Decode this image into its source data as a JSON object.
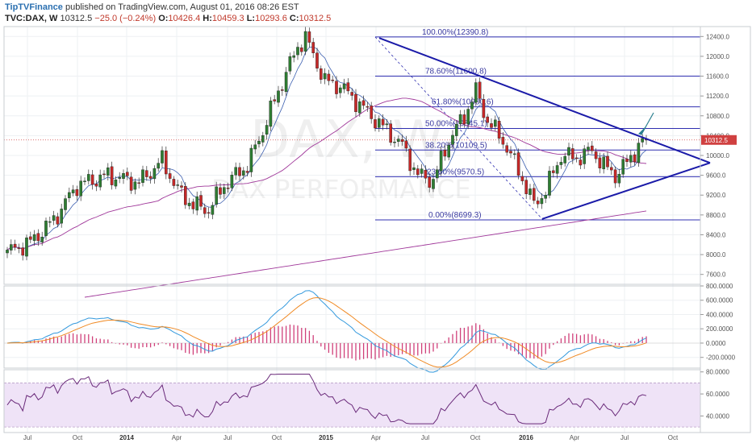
{
  "header": {
    "brand": "TipTVFinance",
    "published": "published on TradingView.com, August 01, 2016 08:26 EST",
    "symbol": "TVC:DAX, W",
    "last": "10312.5",
    "change": "−25.0 (−0.24%)",
    "o_label": "O:",
    "o_value": "10426.4",
    "h_label": "H:",
    "h_value": "10459.3",
    "l_label": "L:",
    "l_value": "10293.6",
    "c_label": "C:",
    "c_value": "10312.5"
  },
  "watermark": {
    "line1": "DAX, W",
    "line2": "DAX PERFORMANCE"
  },
  "colors": {
    "up": "#2e7d32",
    "down": "#c62828",
    "fib": "#2f2fb0",
    "trend": "#1a1aa8",
    "ma": "#a0389a",
    "macd": "#3399dd",
    "signal": "#f08a24",
    "hist": "#d0407a",
    "rsi": "#6a2a7a",
    "rsi_band": "#efe3f7"
  },
  "chart_data": [
    {
      "type": "candlestick",
      "panel": "price",
      "ylim": [
        7400,
        12600
      ],
      "y_ticks": [
        "12400.0",
        "12000.0",
        "11600.0",
        "11200.0",
        "10800.0",
        "10400.0",
        "10000.0",
        "9600.0",
        "9200.0",
        "8800.0",
        "8400.0",
        "8000.0",
        "7600.0"
      ],
      "y_tick_values": [
        12400,
        12000,
        11600,
        11200,
        10800,
        10400,
        10000,
        9600,
        9200,
        8800,
        8400,
        8000,
        7600
      ],
      "x_ticks": [
        "Jul",
        "Oct",
        "2014",
        "Apr",
        "Jul",
        "Oct",
        "2015",
        "Apr",
        "Jul",
        "Oct",
        "2016",
        "Apr",
        "Jul",
        "Oct"
      ],
      "last_price_label": "10312.5",
      "last_price": 10312.5,
      "close_anchors": [
        [
          0,
          8050
        ],
        [
          6,
          8250
        ],
        [
          12,
          8700
        ],
        [
          18,
          9400
        ],
        [
          26,
          9600
        ],
        [
          34,
          9450
        ],
        [
          40,
          9900
        ],
        [
          44,
          9300
        ],
        [
          48,
          9000
        ],
        [
          52,
          8900
        ],
        [
          56,
          9400
        ],
        [
          62,
          9800
        ],
        [
          66,
          10500
        ],
        [
          70,
          11300
        ],
        [
          75,
          12200
        ],
        [
          77,
          12380
        ],
        [
          82,
          11500
        ],
        [
          86,
          11400
        ],
        [
          90,
          11100
        ],
        [
          94,
          10800
        ],
        [
          98,
          10500
        ],
        [
          102,
          10200
        ],
        [
          106,
          9600
        ],
        [
          110,
          9500
        ],
        [
          114,
          10300
        ],
        [
          118,
          10800
        ],
        [
          121,
          11300
        ],
        [
          124,
          10700
        ],
        [
          128,
          10300
        ],
        [
          132,
          9700
        ],
        [
          136,
          9000
        ],
        [
          139,
          9300
        ],
        [
          143,
          10000
        ],
        [
          147,
          9950
        ],
        [
          151,
          10100
        ],
        [
          154,
          9800
        ],
        [
          157,
          9600
        ],
        [
          160,
          9850
        ],
        [
          163,
          10200
        ],
        [
          165,
          10310
        ]
      ],
      "fibonacci": [
        {
          "label": "100.00%(12390.8)",
          "value": 12390.8
        },
        {
          "label": "78.60%(11600.8)",
          "value": 11600.8
        },
        {
          "label": "61.80%(10980.6)",
          "value": 10980.6
        },
        {
          "label": "50.00%(10545.1)",
          "value": 10545.1
        },
        {
          "label": "38.20%(10109.5)",
          "value": 10109.5
        },
        {
          "label": "23.60%(9570.5)",
          "value": 9570.5
        },
        {
          "label": "0.00%(8699.3)",
          "value": 8699.3
        }
      ]
    },
    {
      "type": "line",
      "panel": "macd",
      "ylim": [
        -350,
        800
      ],
      "y_ticks": [
        "800.0000",
        "600.0000",
        "400.0000",
        "200.0000",
        "0.0000",
        "-200.0000"
      ],
      "y_tick_values": [
        800,
        600,
        400,
        200,
        0,
        -200
      ],
      "series": [
        {
          "values": "derived"
        }
      ]
    },
    {
      "type": "line",
      "panel": "rsi",
      "ylim": [
        25,
        82
      ],
      "y_ticks": [
        "80.0000",
        "60.0000",
        "40.0000"
      ],
      "y_tick_values": [
        80,
        60,
        40
      ],
      "bands": [
        30,
        70
      ]
    }
  ]
}
